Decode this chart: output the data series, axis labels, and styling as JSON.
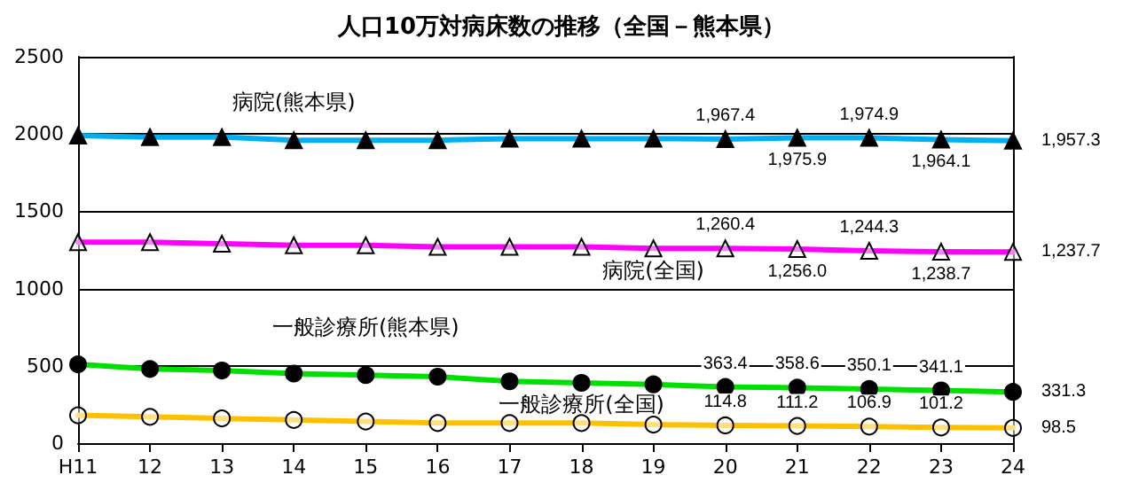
{
  "chart_data": {
    "type": "line",
    "title": "人口10万対病床数の推移（全国－熊本県）",
    "categories": [
      "H11",
      "12",
      "13",
      "14",
      "15",
      "16",
      "17",
      "18",
      "19",
      "20",
      "21",
      "22",
      "23",
      "24"
    ],
    "series": [
      {
        "name": "病院(熊本県)",
        "color": "#00b0f0",
        "marker": "triangle",
        "values": [
          1990,
          1980,
          1980,
          1960,
          1960,
          1960,
          1970,
          1970,
          1970,
          1967.4,
          1975.9,
          1974.9,
          1964.1,
          1957.3
        ],
        "value_labels": [
          null,
          null,
          null,
          null,
          null,
          null,
          null,
          null,
          null,
          "1,967.4",
          "1,975.9",
          "1,974.9",
          "1,964.1",
          "1,957.3"
        ]
      },
      {
        "name": "病院(全国)",
        "color": "#ff00ff",
        "marker": "triangle",
        "values": [
          1300,
          1300,
          1290,
          1280,
          1280,
          1270,
          1270,
          1270,
          1260,
          1260.4,
          1256.0,
          1244.3,
          1238.7,
          1237.7
        ],
        "value_labels": [
          null,
          null,
          null,
          null,
          null,
          null,
          null,
          null,
          null,
          "1,260.4",
          "1,256.0",
          "1,244.3",
          "1,238.7",
          "1,237.7"
        ]
      },
      {
        "name": "一般診療所(熊本県)",
        "color": "#00e000",
        "marker": "circle",
        "values": [
          510,
          480,
          470,
          450,
          440,
          430,
          400,
          390,
          380,
          363.4,
          358.6,
          350.1,
          341.1,
          331.3
        ],
        "value_labels": [
          null,
          null,
          null,
          null,
          null,
          null,
          null,
          null,
          null,
          "363.4",
          "358.6",
          "350.1",
          "341.1",
          "331.3"
        ]
      },
      {
        "name": "一般診療所(全国)",
        "color": "#ffc000",
        "marker": "circle",
        "values": [
          180,
          170,
          160,
          150,
          140,
          130,
          130,
          130,
          120,
          114.8,
          111.2,
          106.9,
          101.2,
          98.5
        ],
        "value_labels": [
          null,
          null,
          null,
          null,
          null,
          null,
          null,
          null,
          null,
          "114.8",
          "111.2",
          "106.9",
          "101.2",
          "98.5"
        ]
      }
    ],
    "ylim": [
      0,
      2500
    ],
    "yticks": [
      0,
      500,
      1000,
      1500,
      2000,
      2500
    ],
    "grid": "y",
    "legend": false
  }
}
